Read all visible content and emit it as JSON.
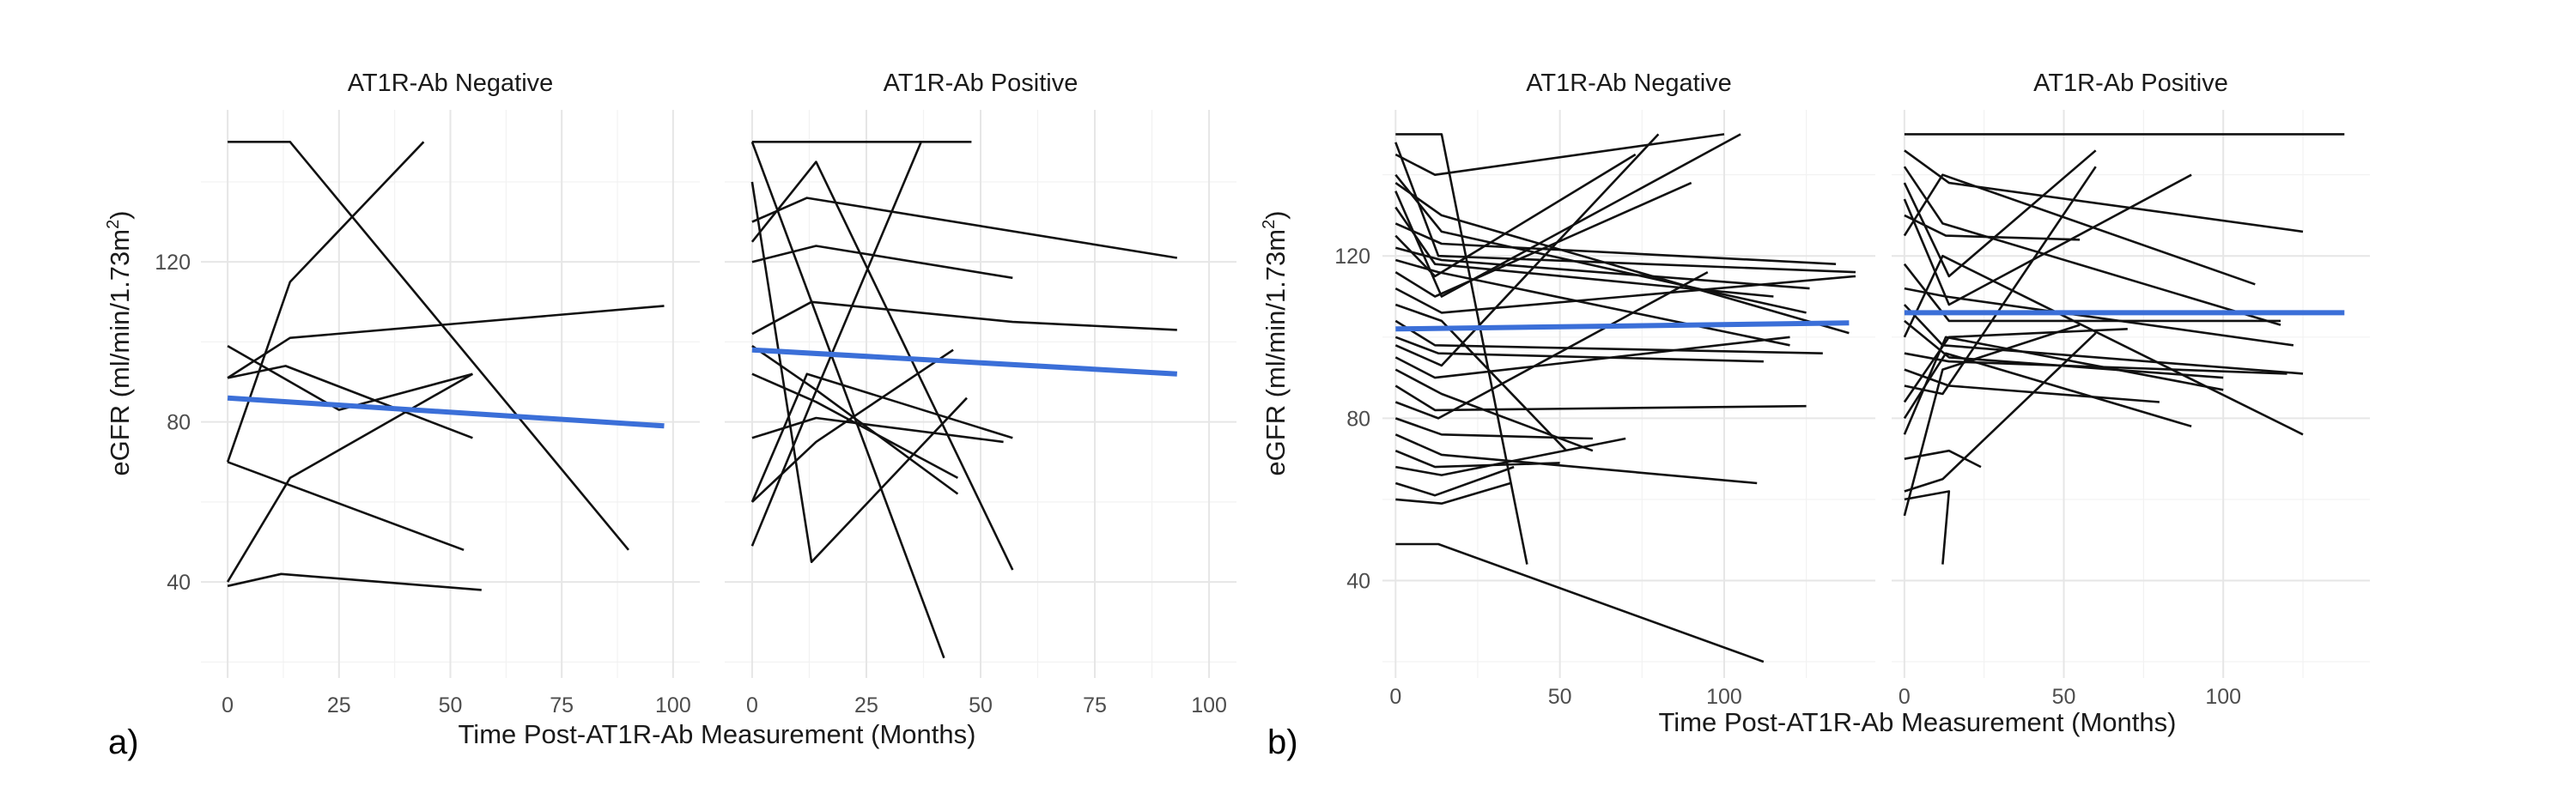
{
  "figure": {
    "panels": [
      {
        "label": "a)",
        "xlabel": "Time Post-AT1R-Ab Measurement (Months)",
        "ylabel": "eGFR (ml/min/1.73m",
        "ylabel_sup": "2",
        "ylabel_end": ")"
      },
      {
        "label": "b)",
        "xlabel": "Time Post-AT1R-Ab Measurement (Months)",
        "ylabel": "eGFR (ml/min/1.73m",
        "ylabel_sup": "2",
        "ylabel_end": ")"
      }
    ]
  },
  "chart_data": [
    {
      "type": "line",
      "panel": "a)",
      "facet_titles": [
        "AT1R-Ab Negative",
        "AT1R-Ab Positive"
      ],
      "xlabel": "Time Post-AT1R-Ab Measurement (Months)",
      "ylabel": "eGFR (ml/min/1.73m2)",
      "xlim": [
        -6,
        106
      ],
      "ylim": [
        16,
        158
      ],
      "xticks": [
        0,
        25,
        50,
        75,
        100
      ],
      "yticks": [
        40,
        80,
        120
      ],
      "grid": true,
      "line_color": "#000000",
      "trend_color": "#3b6fd8",
      "facets": [
        {
          "title": "AT1R-Ab Negative",
          "trajectories": [
            [
              [
                0,
                150
              ],
              [
                14,
                150
              ],
              [
                90,
                48
              ]
            ],
            [
              [
                0,
                91
              ],
              [
                13,
                94
              ],
              [
                55,
                76
              ]
            ],
            [
              [
                0,
                99
              ],
              [
                25,
                83
              ],
              [
                55,
                92
              ]
            ],
            [
              [
                0,
                70
              ],
              [
                14,
                115
              ],
              [
                44,
                150
              ]
            ],
            [
              [
                0,
                91
              ],
              [
                14,
                101
              ],
              [
                98,
                109
              ]
            ],
            [
              [
                0,
                70
              ],
              [
                53,
                48
              ]
            ],
            [
              [
                0,
                40
              ],
              [
                14,
                66
              ],
              [
                55,
                92
              ]
            ],
            [
              [
                0,
                39
              ],
              [
                12,
                42
              ],
              [
                57,
                38
              ]
            ]
          ],
          "trend": [
            [
              0,
              86
            ],
            [
              98,
              79
            ]
          ]
        },
        {
          "title": "AT1R-Ab Positive",
          "trajectories": [
            [
              [
                0,
                150
              ],
              [
                14,
                150
              ],
              [
                48,
                150
              ]
            ],
            [
              [
                0,
                150
              ],
              [
                42,
                21
              ]
            ],
            [
              [
                0,
                140
              ],
              [
                13,
                45
              ],
              [
                47,
                86
              ]
            ],
            [
              [
                0,
                130
              ],
              [
                12,
                136
              ],
              [
                93,
                121
              ]
            ],
            [
              [
                0,
                125
              ],
              [
                14,
                145
              ],
              [
                57,
                43
              ]
            ],
            [
              [
                0,
                120
              ],
              [
                14,
                124
              ],
              [
                57,
                116
              ]
            ],
            [
              [
                0,
                102
              ],
              [
                13,
                110
              ],
              [
                57,
                105
              ],
              [
                93,
                103
              ]
            ],
            [
              [
                0,
                99
              ],
              [
                14,
                88
              ],
              [
                45,
                62
              ]
            ],
            [
              [
                0,
                92
              ],
              [
                14,
                85
              ],
              [
                45,
                66
              ]
            ],
            [
              [
                0,
                76
              ],
              [
                14,
                81
              ],
              [
                55,
                75
              ]
            ],
            [
              [
                0,
                60
              ],
              [
                12,
                92
              ],
              [
                57,
                76
              ]
            ],
            [
              [
                0,
                49
              ],
              [
                13,
                85
              ],
              [
                37,
                150
              ]
            ],
            [
              [
                0,
                60
              ],
              [
                14,
                75
              ],
              [
                44,
                98
              ]
            ]
          ],
          "trend": [
            [
              0,
              98
            ],
            [
              93,
              92
            ]
          ]
        }
      ]
    },
    {
      "type": "line",
      "panel": "b)",
      "facet_titles": [
        "AT1R-Ab Negative",
        "AT1R-Ab Positive"
      ],
      "xlabel": "Time Post-AT1R-Ab Measurement (Months)",
      "ylabel": "eGFR (ml/min/1.73m2)",
      "xlim": [
        -4,
        146
      ],
      "ylim": [
        16,
        156
      ],
      "xticks": [
        0,
        50,
        100
      ],
      "yticks": [
        40,
        80,
        120
      ],
      "grid": true,
      "line_color": "#000000",
      "trend_color": "#3b6fd8",
      "facets": [
        {
          "title": "AT1R-Ab Negative",
          "trajectories": [
            [
              [
                0,
                150
              ],
              [
                14,
                150
              ],
              [
                40,
                44
              ]
            ],
            [
              [
                0,
                148
              ],
              [
                13,
                120
              ],
              [
                140,
                116
              ]
            ],
            [
              [
                0,
                145
              ],
              [
                12,
                140
              ],
              [
                100,
                150
              ]
            ],
            [
              [
                0,
                140
              ],
              [
                14,
                126
              ],
              [
                125,
                106
              ]
            ],
            [
              [
                0,
                138
              ],
              [
                14,
                130
              ],
              [
                138,
                101
              ]
            ],
            [
              [
                0,
                136
              ],
              [
                14,
                110
              ],
              [
                105,
                150
              ]
            ],
            [
              [
                0,
                132
              ],
              [
                12,
                118
              ],
              [
                115,
                110
              ]
            ],
            [
              [
                0,
                128
              ],
              [
                14,
                123
              ],
              [
                134,
                118
              ]
            ],
            [
              [
                0,
                125
              ],
              [
                12,
                115
              ],
              [
                73,
                145
              ]
            ],
            [
              [
                0,
                122
              ],
              [
                14,
                119
              ],
              [
                126,
                112
              ]
            ],
            [
              [
                0,
                119
              ],
              [
                13,
                116
              ],
              [
                120,
                98
              ]
            ],
            [
              [
                0,
                116
              ],
              [
                12,
                110
              ],
              [
                90,
                138
              ]
            ],
            [
              [
                0,
                112
              ],
              [
                14,
                106
              ],
              [
                140,
                115
              ]
            ],
            [
              [
                0,
                108
              ],
              [
                14,
                104
              ],
              [
                52,
                72
              ]
            ],
            [
              [
                0,
                104
              ],
              [
                12,
                98
              ],
              [
                130,
                96
              ]
            ],
            [
              [
                0,
                100
              ],
              [
                13,
                96
              ],
              [
                112,
                94
              ]
            ],
            [
              [
                0,
                98
              ],
              [
                14,
                93
              ],
              [
                80,
                150
              ]
            ],
            [
              [
                0,
                95
              ],
              [
                12,
                90
              ],
              [
                120,
                100
              ]
            ],
            [
              [
                0,
                92
              ],
              [
                14,
                86
              ],
              [
                60,
                72
              ]
            ],
            [
              [
                0,
                88
              ],
              [
                12,
                82
              ],
              [
                125,
                83
              ]
            ],
            [
              [
                0,
                84
              ],
              [
                13,
                80
              ],
              [
                95,
                116
              ]
            ],
            [
              [
                0,
                80
              ],
              [
                14,
                76
              ],
              [
                60,
                75
              ]
            ],
            [
              [
                0,
                76
              ],
              [
                14,
                71
              ],
              [
                110,
                64
              ]
            ],
            [
              [
                0,
                72
              ],
              [
                12,
                68
              ],
              [
                50,
                69
              ]
            ],
            [
              [
                0,
                68
              ],
              [
                14,
                66
              ],
              [
                70,
                75
              ]
            ],
            [
              [
                0,
                64
              ],
              [
                12,
                61
              ],
              [
                36,
                68
              ]
            ],
            [
              [
                0,
                60
              ],
              [
                14,
                59
              ],
              [
                35,
                64
              ]
            ],
            [
              [
                0,
                49
              ],
              [
                13,
                49
              ],
              [
                112,
                20
              ]
            ]
          ],
          "trend": [
            [
              0,
              102
            ],
            [
              138,
              103.5
            ]
          ]
        },
        {
          "title": "AT1R-Ab Positive",
          "trajectories": [
            [
              [
                0,
                150
              ],
              [
                14,
                150
              ],
              [
                138,
                150
              ]
            ],
            [
              [
                0,
                146
              ],
              [
                14,
                138
              ],
              [
                125,
                126
              ]
            ],
            [
              [
                0,
                142
              ],
              [
                12,
                128
              ],
              [
                118,
                103
              ]
            ],
            [
              [
                0,
                138
              ],
              [
                14,
                115
              ],
              [
                60,
                146
              ]
            ],
            [
              [
                0,
                134
              ],
              [
                14,
                108
              ],
              [
                90,
                140
              ]
            ],
            [
              [
                0,
                130
              ],
              [
                13,
                125
              ],
              [
                55,
                124
              ]
            ],
            [
              [
                0,
                125
              ],
              [
                12,
                140
              ],
              [
                110,
                113
              ]
            ],
            [
              [
                0,
                118
              ],
              [
                14,
                104
              ],
              [
                118,
                104
              ]
            ],
            [
              [
                0,
                112
              ],
              [
                13,
                110
              ],
              [
                122,
                98
              ]
            ],
            [
              [
                0,
                108
              ],
              [
                12,
                98
              ],
              [
                125,
                91
              ]
            ],
            [
              [
                0,
                104
              ],
              [
                14,
                95
              ],
              [
                100,
                90
              ]
            ],
            [
              [
                0,
                100
              ],
              [
                12,
                120
              ],
              [
                125,
                76
              ]
            ],
            [
              [
                0,
                96
              ],
              [
                14,
                94
              ],
              [
                120,
                91
              ]
            ],
            [
              [
                0,
                92
              ],
              [
                14,
                88
              ],
              [
                80,
                84
              ]
            ],
            [
              [
                0,
                88
              ],
              [
                12,
                86
              ],
              [
                60,
                142
              ]
            ],
            [
              [
                0,
                84
              ],
              [
                14,
                100
              ],
              [
                70,
                102
              ]
            ],
            [
              [
                0,
                80
              ],
              [
                13,
                96
              ],
              [
                90,
                78
              ]
            ],
            [
              [
                0,
                76
              ],
              [
                13,
                100
              ],
              [
                100,
                87
              ]
            ],
            [
              [
                0,
                70
              ],
              [
                14,
                72
              ],
              [
                24,
                68
              ]
            ],
            [
              [
                0,
                62
              ],
              [
                12,
                65
              ],
              [
                60,
                101
              ]
            ],
            [
              [
                0,
                60
              ],
              [
                14,
                62
              ],
              [
                12,
                44
              ]
            ],
            [
              [
                0,
                56
              ],
              [
                12,
                92
              ],
              [
                55,
                103
              ]
            ]
          ],
          "trend": [
            [
              0,
              106
            ],
            [
              138,
              106
            ]
          ]
        }
      ]
    }
  ]
}
